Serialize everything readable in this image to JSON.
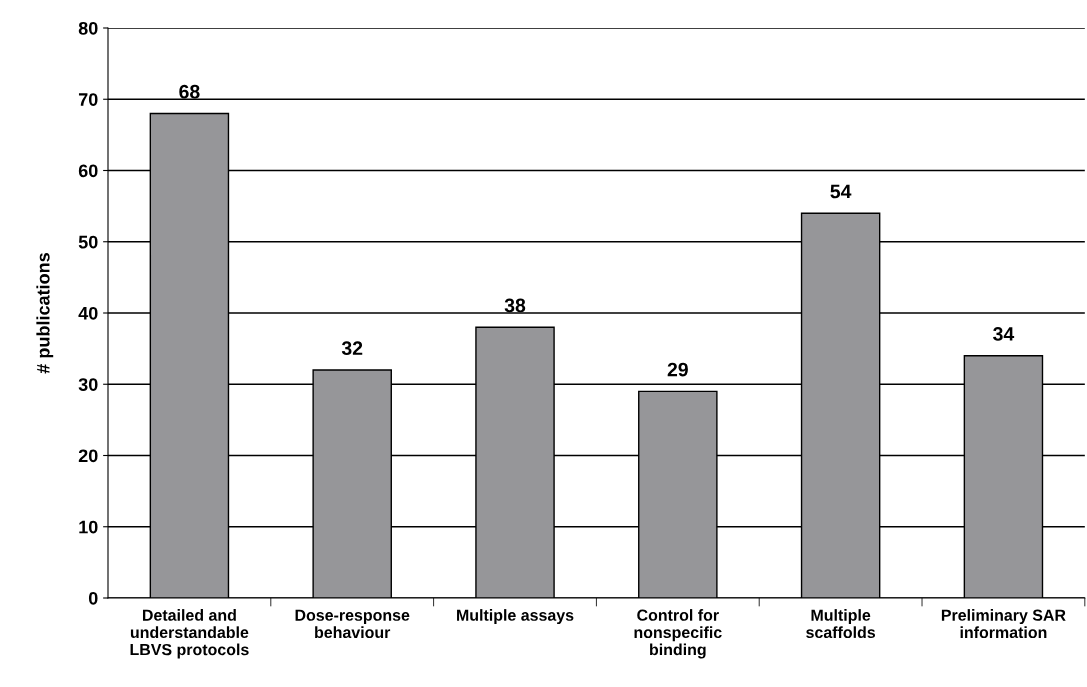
{
  "chart_data": {
    "type": "bar",
    "ylabel": "# publications",
    "categories": [
      "Detailed and\nunderstandable\nLBVS protocols",
      "Dose-response\nbehaviour",
      "Multiple assays",
      "Control for\nnonspecific\nbinding",
      "Multiple\nscaffolds",
      "Preliminary SAR\ninformation"
    ],
    "values": [
      68,
      32,
      38,
      29,
      54,
      34
    ],
    "color": "#969699",
    "ylim": [
      0,
      80
    ],
    "yticks": [
      0,
      10,
      20,
      30,
      40,
      50,
      60,
      70,
      80
    ],
    "grid": "y",
    "data_labels": true
  }
}
